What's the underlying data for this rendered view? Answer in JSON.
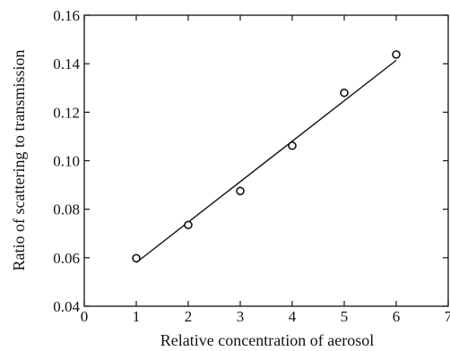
{
  "chart_data": {
    "type": "scatter",
    "title": "",
    "xlabel": "Relative concentration of aerosol",
    "ylabel": "Ratio of scattering to transmission",
    "xlim": [
      0,
      7
    ],
    "ylim": [
      0.04,
      0.16
    ],
    "xticks": [
      "0",
      "1",
      "2",
      "3",
      "4",
      "5",
      "6",
      "7"
    ],
    "yticks": [
      "0.04",
      "0.06",
      "0.08",
      "0.10",
      "0.12",
      "0.14",
      "0.16"
    ],
    "grid": false,
    "series": [
      {
        "type": "scatter",
        "marker": "open-circle",
        "x": [
          1,
          2,
          3,
          4,
          5,
          6
        ],
        "y": [
          0.0598,
          0.0735,
          0.0875,
          0.1062,
          0.128,
          0.1438
        ]
      },
      {
        "type": "line",
        "role": "linear-fit",
        "x": [
          1,
          6
        ],
        "y": [
          0.058,
          0.1414
        ]
      }
    ]
  }
}
